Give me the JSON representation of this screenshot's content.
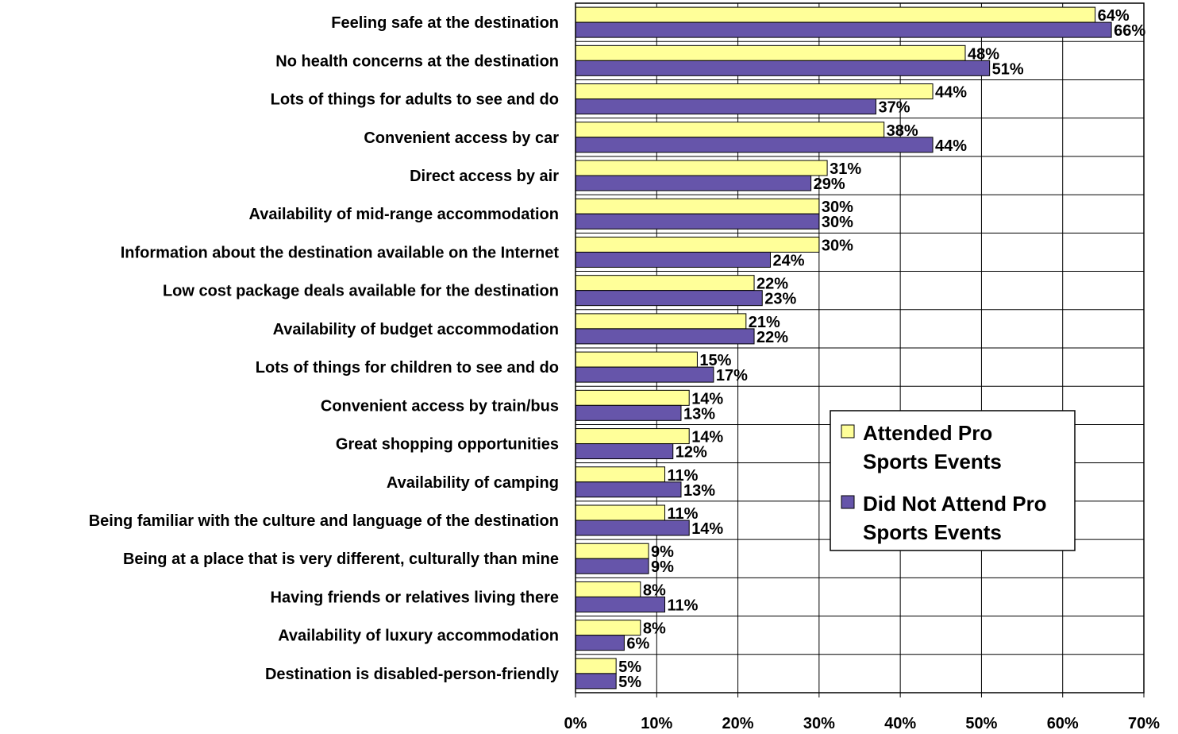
{
  "chart_data": {
    "type": "bar",
    "orientation": "horizontal",
    "categories": [
      "Feeling safe at the destination",
      "No health concerns at the destination",
      "Lots of things for adults to see and do",
      "Convenient access by car",
      "Direct access by air",
      "Availability of mid-range accommodation",
      "Information about the destination available on the Internet",
      "Low cost package deals available for the destination",
      "Availability of budget accommodation",
      "Lots of things for children to see and do",
      "Convenient access by train/bus",
      "Great shopping opportunities",
      "Availability of camping",
      "Being familiar with the culture and language of the destination",
      "Being at a place that is very different, culturally than mine",
      "Having friends or relatives living there",
      "Availability of luxury accommodation",
      "Destination is disabled-person-friendly"
    ],
    "series": [
      {
        "name": "Attended Pro Sports Events",
        "color": "#ffff99",
        "values": [
          64,
          48,
          44,
          38,
          31,
          30,
          30,
          22,
          21,
          15,
          14,
          14,
          11,
          11,
          9,
          8,
          8,
          5
        ],
        "labels": [
          "64%",
          "48%",
          "44%",
          "38%",
          "31%",
          "30%",
          "30%",
          "22%",
          "21%",
          "15%",
          "14%",
          "14%",
          "11%",
          "11%",
          "9%",
          "8%",
          "8%",
          "5%"
        ]
      },
      {
        "name": "Did Not Attend Pro Sports Events",
        "color": "#6655aa",
        "values": [
          66,
          51,
          37,
          44,
          29,
          30,
          24,
          23,
          22,
          17,
          13,
          12,
          13,
          14,
          9,
          11,
          6,
          5
        ],
        "labels": [
          "66%",
          "51%",
          "37%",
          "44%",
          "29%",
          "30%",
          "24%",
          "23%",
          "22%",
          "17%",
          "13%",
          "12%",
          "13%",
          "14%",
          "9%",
          "11%",
          "6%",
          "5%"
        ]
      }
    ],
    "legend": {
      "position": "right-middle",
      "entries": [
        [
          "Attended Pro",
          "Sports Events"
        ],
        [
          "Did Not Attend Pro",
          "Sports Events"
        ]
      ]
    },
    "xlim": [
      0,
      70
    ],
    "xticks": [
      0,
      10,
      20,
      30,
      40,
      50,
      60,
      70
    ],
    "xtick_labels": [
      "0%",
      "10%",
      "20%",
      "30%",
      "40%",
      "50%",
      "60%",
      "70%"
    ],
    "grid": true
  }
}
